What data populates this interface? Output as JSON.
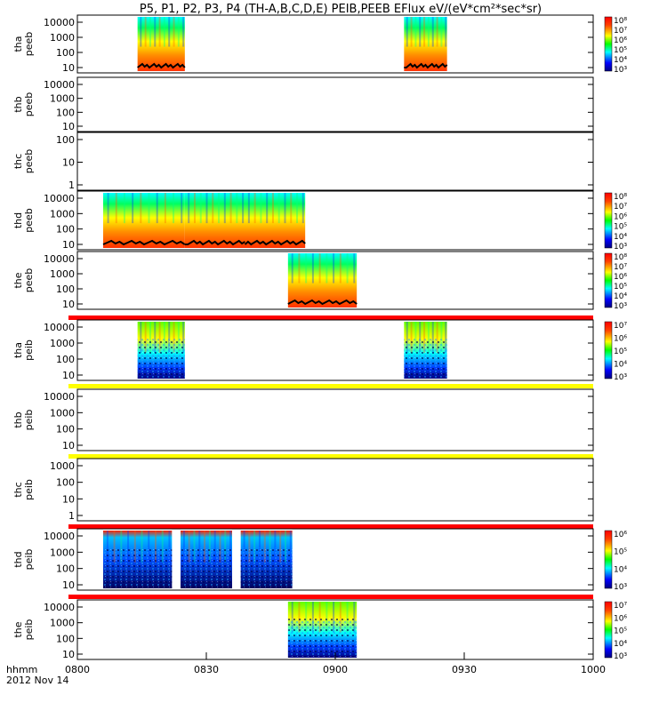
{
  "title": "P5, P1, P2, P3, P4 (TH-A,B,C,D,E) PEIB,PEEB EFlux eV/(eV*cm²*sec*sr)",
  "footer": {
    "axis_label": "hhmm",
    "date": "2012 Nov 14"
  },
  "colors": {
    "flag_red": "#ff0000",
    "flag_yellow": "#ffff00",
    "trace": "#000000"
  },
  "chart_data": {
    "type": "heatmap",
    "x_label": "hhmm",
    "x_ticks": [
      "0800",
      "0830",
      "0900",
      "0930",
      "1000"
    ],
    "x_range_minutes": [
      480,
      600
    ],
    "panels": [
      {
        "label1": "tha",
        "label2": "peeb",
        "yticks": [
          "10000",
          "1000",
          "100",
          "10"
        ],
        "cbar": [
          "10⁸",
          "10⁷",
          "10⁶",
          "10⁵",
          "10⁴",
          "10³"
        ],
        "blocks": [
          [
            494,
            505
          ],
          [
            556,
            566
          ]
        ],
        "trace": true,
        "style": "peeb"
      },
      {
        "label1": "thb",
        "label2": "peeb",
        "yticks": [
          "10000",
          "1000",
          "100",
          "10"
        ],
        "cbar": [],
        "blocks": [],
        "trace": false,
        "style": "peeb"
      },
      {
        "label1": "thc",
        "label2": "peeb",
        "yticks": [
          "100",
          "10",
          "1"
        ],
        "cbar": [],
        "blocks": [],
        "trace": false,
        "style": "peeb"
      },
      {
        "label1": "thd",
        "label2": "peeb",
        "yticks": [
          "10000",
          "1000",
          "100",
          "10"
        ],
        "cbar": [
          "10⁸",
          "10⁷",
          "10⁶",
          "10⁵",
          "10⁴",
          "10³"
        ],
        "blocks": [
          [
            486,
            505
          ],
          [
            505,
            519
          ],
          [
            519,
            533
          ]
        ],
        "trace": true,
        "style": "peeb"
      },
      {
        "label1": "the",
        "label2": "peeb",
        "yticks": [
          "10000",
          "1000",
          "100",
          "10"
        ],
        "cbar": [
          "10⁸",
          "10⁷",
          "10⁶",
          "10⁵",
          "10⁴",
          "10³"
        ],
        "blocks": [
          [
            529,
            545
          ]
        ],
        "trace": true,
        "style": "peeb",
        "flag_after": "red"
      },
      {
        "label1": "tha",
        "label2": "peib",
        "yticks": [
          "10000",
          "1000",
          "100",
          "10"
        ],
        "cbar": [
          "10⁷",
          "10⁶",
          "10⁵",
          "10⁴",
          "10³"
        ],
        "blocks": [
          [
            494,
            505
          ],
          [
            556,
            566
          ]
        ],
        "trace": false,
        "style": "peib",
        "flag_after": "yellow"
      },
      {
        "label1": "thb",
        "label2": "peib",
        "yticks": [
          "10000",
          "1000",
          "100",
          "10"
        ],
        "cbar": [],
        "blocks": [],
        "trace": false,
        "style": "peib",
        "flag_after": "yellow"
      },
      {
        "label1": "thc",
        "label2": "peib",
        "yticks": [
          "1000",
          "100",
          "10",
          "1"
        ],
        "cbar": [],
        "blocks": [],
        "trace": false,
        "style": "peib",
        "flag_after": "red"
      },
      {
        "label1": "thd",
        "label2": "peib",
        "yticks": [
          "10000",
          "1000",
          "100",
          "10"
        ],
        "cbar": [
          "10⁶",
          "10⁵",
          "10⁴",
          "10³"
        ],
        "blocks": [
          [
            486,
            502
          ],
          [
            504,
            516
          ],
          [
            518,
            530
          ]
        ],
        "trace": false,
        "style": "noisy",
        "flag_after": "red"
      },
      {
        "label1": "the",
        "label2": "peib",
        "yticks": [
          "10000",
          "1000",
          "100",
          "10"
        ],
        "cbar": [
          "10⁷",
          "10⁶",
          "10⁵",
          "10⁴",
          "10³"
        ],
        "blocks": [
          [
            529,
            545
          ]
        ],
        "trace": false,
        "style": "peib"
      }
    ]
  }
}
